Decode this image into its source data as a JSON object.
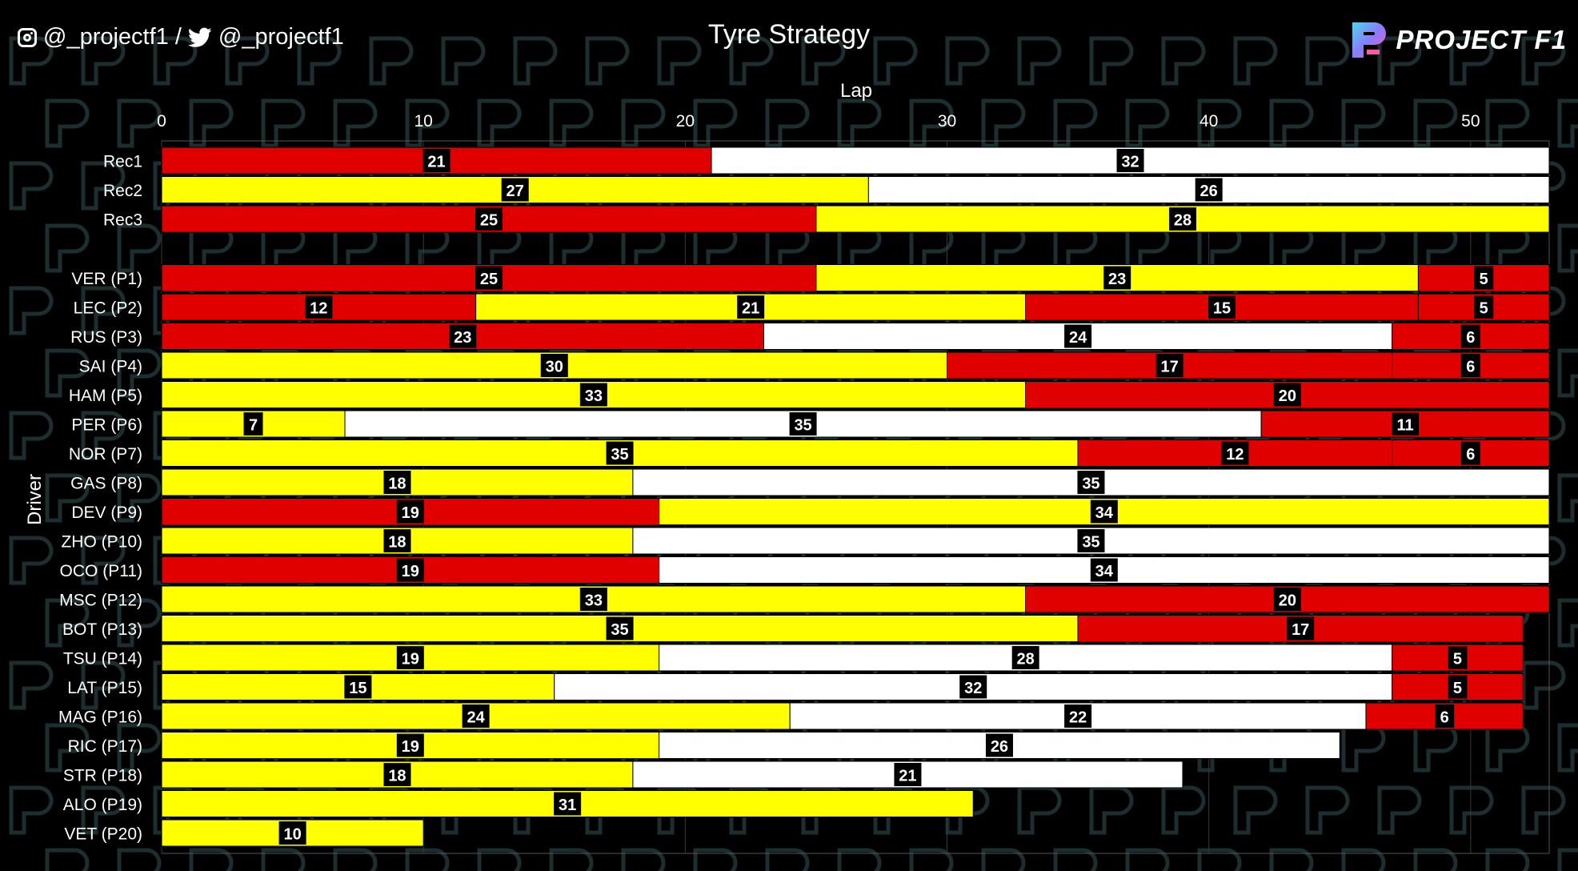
{
  "header": {
    "instagram_handle": "@_projectf1 /",
    "twitter_handle": "@_projectf1",
    "brand_name": "PROJECT F1"
  },
  "colors": {
    "background": "#000000",
    "soft": "#e00000",
    "medium": "#ffff00",
    "hard": "#ffffff",
    "label_box": "#000000"
  },
  "chart_data": {
    "type": "bar",
    "orientation": "horizontal-stacked",
    "title": "Tyre Strategy",
    "xlabel": "Lap",
    "ylabel": "Driver",
    "xlim": [
      0,
      53
    ],
    "xticks": [
      0,
      10,
      20,
      30,
      40,
      50
    ],
    "grid": true,
    "compound_colors": {
      "S": "#e00000",
      "M": "#ffff00",
      "H": "#ffffff"
    },
    "rows": [
      {
        "label": "Rec1",
        "stints": [
          {
            "compound": "S",
            "laps": 21
          },
          {
            "compound": "H",
            "laps": 32
          }
        ]
      },
      {
        "label": "Rec2",
        "stints": [
          {
            "compound": "M",
            "laps": 27
          },
          {
            "compound": "H",
            "laps": 26
          }
        ]
      },
      {
        "label": "Rec3",
        "stints": [
          {
            "compound": "S",
            "laps": 25
          },
          {
            "compound": "M",
            "laps": 28
          }
        ]
      },
      {
        "label": "VER (P1)",
        "stints": [
          {
            "compound": "S",
            "laps": 25
          },
          {
            "compound": "M",
            "laps": 23
          },
          {
            "compound": "S",
            "laps": 5
          }
        ]
      },
      {
        "label": "LEC (P2)",
        "stints": [
          {
            "compound": "S",
            "laps": 12
          },
          {
            "compound": "M",
            "laps": 21
          },
          {
            "compound": "S",
            "laps": 15
          },
          {
            "compound": "S",
            "laps": 5
          }
        ]
      },
      {
        "label": "RUS (P3)",
        "stints": [
          {
            "compound": "S",
            "laps": 23
          },
          {
            "compound": "H",
            "laps": 24
          },
          {
            "compound": "S",
            "laps": 6
          }
        ]
      },
      {
        "label": "SAI (P4)",
        "stints": [
          {
            "compound": "M",
            "laps": 30
          },
          {
            "compound": "S",
            "laps": 17
          },
          {
            "compound": "S",
            "laps": 6
          }
        ]
      },
      {
        "label": "HAM (P5)",
        "stints": [
          {
            "compound": "M",
            "laps": 33
          },
          {
            "compound": "S",
            "laps": 20
          }
        ]
      },
      {
        "label": "PER (P6)",
        "stints": [
          {
            "compound": "M",
            "laps": 7
          },
          {
            "compound": "H",
            "laps": 35
          },
          {
            "compound": "S",
            "laps": 11
          }
        ]
      },
      {
        "label": "NOR (P7)",
        "stints": [
          {
            "compound": "M",
            "laps": 35
          },
          {
            "compound": "S",
            "laps": 12
          },
          {
            "compound": "S",
            "laps": 6
          }
        ]
      },
      {
        "label": "GAS (P8)",
        "stints": [
          {
            "compound": "M",
            "laps": 18
          },
          {
            "compound": "H",
            "laps": 35
          }
        ]
      },
      {
        "label": "DEV (P9)",
        "stints": [
          {
            "compound": "S",
            "laps": 19
          },
          {
            "compound": "M",
            "laps": 34
          }
        ]
      },
      {
        "label": "ZHO (P10)",
        "stints": [
          {
            "compound": "M",
            "laps": 18
          },
          {
            "compound": "H",
            "laps": 35
          }
        ]
      },
      {
        "label": "OCO (P11)",
        "stints": [
          {
            "compound": "S",
            "laps": 19
          },
          {
            "compound": "H",
            "laps": 34
          }
        ]
      },
      {
        "label": "MSC (P12)",
        "stints": [
          {
            "compound": "M",
            "laps": 33
          },
          {
            "compound": "S",
            "laps": 20
          }
        ]
      },
      {
        "label": "BOT (P13)",
        "stints": [
          {
            "compound": "M",
            "laps": 35
          },
          {
            "compound": "S",
            "laps": 17
          }
        ]
      },
      {
        "label": "TSU (P14)",
        "stints": [
          {
            "compound": "M",
            "laps": 19
          },
          {
            "compound": "H",
            "laps": 28
          },
          {
            "compound": "S",
            "laps": 5
          }
        ]
      },
      {
        "label": "LAT (P15)",
        "stints": [
          {
            "compound": "M",
            "laps": 15
          },
          {
            "compound": "H",
            "laps": 32
          },
          {
            "compound": "S",
            "laps": 5
          }
        ]
      },
      {
        "label": "MAG (P16)",
        "stints": [
          {
            "compound": "M",
            "laps": 24
          },
          {
            "compound": "H",
            "laps": 22
          },
          {
            "compound": "S",
            "laps": 6
          }
        ]
      },
      {
        "label": "RIC (P17)",
        "stints": [
          {
            "compound": "M",
            "laps": 19
          },
          {
            "compound": "H",
            "laps": 26
          }
        ]
      },
      {
        "label": "STR (P18)",
        "stints": [
          {
            "compound": "M",
            "laps": 18
          },
          {
            "compound": "H",
            "laps": 21
          }
        ]
      },
      {
        "label": "ALO (P19)",
        "stints": [
          {
            "compound": "M",
            "laps": 31
          }
        ]
      },
      {
        "label": "VET (P20)",
        "stints": [
          {
            "compound": "M",
            "laps": 10
          }
        ]
      }
    ]
  }
}
